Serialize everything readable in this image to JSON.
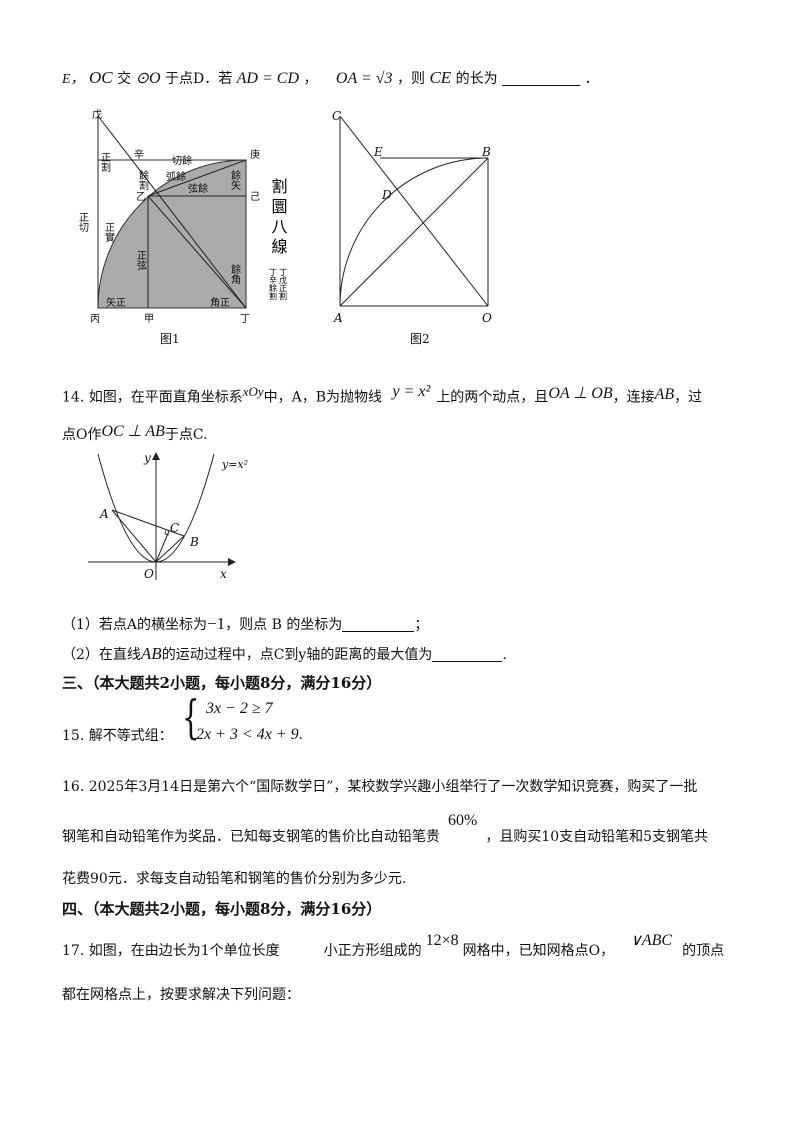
{
  "q13_tail": {
    "p1": "E，",
    "oc": "OC",
    "p2": "交",
    "circle_o": "⊙O",
    "p3": "于点D．若",
    "ad_cd": "AD = CD",
    "p4": "，",
    "oa": "OA = √3",
    "p5": "，则",
    "ce": "CE",
    "p6": "的长为",
    "p7": "．"
  },
  "fig1": {
    "labels": {
      "wu": "戊",
      "geng": "庚",
      "ji": "己",
      "yi": "乙",
      "bing": "丙",
      "jia": "甲",
      "ding": "丁",
      "xin": "辛",
      "zheng_ge": "正割",
      "qie_yu": "切餘",
      "yu_ge": "餘割",
      "hu_yu": "弧餘",
      "xian_yu": "弦餘",
      "yu_shi": "餘矢",
      "zheng_qie": "正切",
      "zheng_shi": "正實",
      "zheng_xian": "正弦",
      "yu_jiao": "餘角",
      "shi_zheng": "矢正",
      "jiao_zheng": "角正",
      "side_title": "割圜八線",
      "side_note_left": "丁辛餘割",
      "side_note_right": "丁戊正割"
    },
    "caption": "图1"
  },
  "fig2": {
    "labels": {
      "c": "C",
      "e": "E",
      "b": "B",
      "d": "D",
      "a": "A",
      "o": "O"
    },
    "caption": "图2"
  },
  "q14": {
    "l1_a": "14. 如图，在平面直角坐标系",
    "xoy": "xOy",
    "l1_b": "中，A，B为抛物线",
    "parabola": "y = x²",
    "l1_c": "上的两个动点，且",
    "perp": "OA ⊥ OB",
    "l1_d": "，连接",
    "ab": "AB",
    "l1_e": "，过",
    "l2_a": "点O作",
    "oc_ab": "OC ⊥ AB",
    "l2_b": "于点C.",
    "graph": {
      "y": "y",
      "x": "x",
      "o": "O",
      "a": "A",
      "b": "B",
      "c": "C",
      "curve": "y=x²"
    },
    "sub1_a": "（1）若点A的横坐标为",
    "sub1_val": "−1",
    "sub1_b": "，则点 B 的坐标为",
    "sub1_c": "；",
    "sub2_a": "（2）在直线",
    "sub2_ab": "AB",
    "sub2_b": "的运动过程中，点C到y轴的距离的最大值为",
    "sub2_c": "."
  },
  "section3": {
    "heading": "三、（本大题共2小题，每小题8分，满分16分）",
    "q15_label": "15. 解不等式组：",
    "ineq1": "3x − 2 ≥ 7",
    "ineq2": "2x + 3 < 4x + 9",
    "ineq_end": ".",
    "q16_l1": "16. 2025年3月14日是第六个“国际数学日”，某校数学兴趣小组举行了一次数学知识竞赛，购买了一批",
    "q16_l2a": "钢笔和自动铅笔作为奖品．已知每支钢笔的售价比自动铅笔贵",
    "q16_pct": "60%",
    "q16_l2b": "，且购买10支自动铅笔和5支钢笔共",
    "q16_l3": "花费90元．求每支自动铅笔和钢笔的售价分别为多少元."
  },
  "section4": {
    "heading": "四、（本大题共2小题，每小题8分，满分16分）",
    "q17_a": "17. 如图，在由边长为1个单位长度",
    "q17_b": "小正方形组成的",
    "q17_grid": "12×8",
    "q17_c": "网格中，已知网格点O，",
    "q17_tri": "∨ABC",
    "q17_d": "的顶点",
    "q17_l2": "都在网格点上，按要求解决下列问题："
  }
}
